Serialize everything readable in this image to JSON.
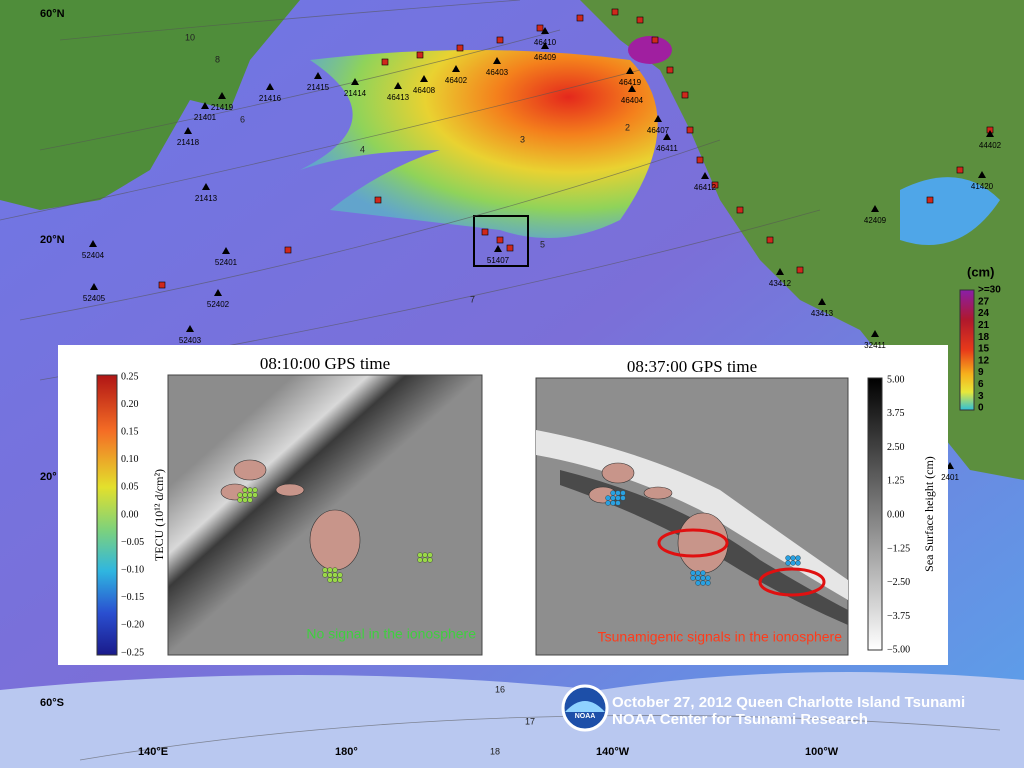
{
  "map": {
    "lat_labels": [
      "60°N",
      "20°N",
      "20°",
      "60°S"
    ],
    "lon_labels": [
      "140°E",
      "180°",
      "140°W",
      "100°W"
    ],
    "buoys": [
      "46410",
      "46409",
      "46403",
      "46402",
      "46408",
      "46413",
      "21414",
      "21415",
      "21416",
      "21419",
      "21401",
      "21418",
      "21413",
      "46419",
      "46404",
      "46407",
      "46411",
      "46412",
      "51407",
      "52404",
      "52401",
      "52405",
      "52402",
      "52403",
      "42409",
      "43412",
      "43413",
      "32411",
      "44402",
      "41420",
      "2401"
    ],
    "contours": [
      "10",
      "8",
      "6",
      "4",
      "3",
      "2",
      "5",
      "7",
      "16",
      "17",
      "18"
    ]
  },
  "legend": {
    "title": "(cm)",
    "ticks": [
      ">=30",
      "27",
      "24",
      "21",
      "18",
      "15",
      "12",
      "9",
      "6",
      "3",
      "0"
    ]
  },
  "panels": [
    {
      "title": "08:10:00 GPS time",
      "note": "No signal in the ionosphere"
    },
    {
      "title": "08:37:00 GPS time",
      "note": "Tsunamigenic signals in the ionosphere"
    }
  ],
  "tecu_bar": {
    "label": "TECU (10¹² d/cm²)",
    "ticks": [
      "0.25",
      "0.20",
      "0.15",
      "0.10",
      "0.05",
      "0.00",
      "−0.05",
      "−0.10",
      "−0.15",
      "−0.20",
      "−0.25"
    ]
  },
  "ssh_bar": {
    "label": "Sea Surface height (cm)",
    "ticks": [
      "5.00",
      "3.75",
      "2.50",
      "1.25",
      "0.00",
      "−1.25",
      "−2.50",
      "−3.75",
      "−5.00"
    ]
  },
  "footer": {
    "logo": "NOAA",
    "line1": "October 27, 2012 Queen Charlotte Island Tsunami",
    "line2": "NOAA Center for Tsunami Research"
  }
}
